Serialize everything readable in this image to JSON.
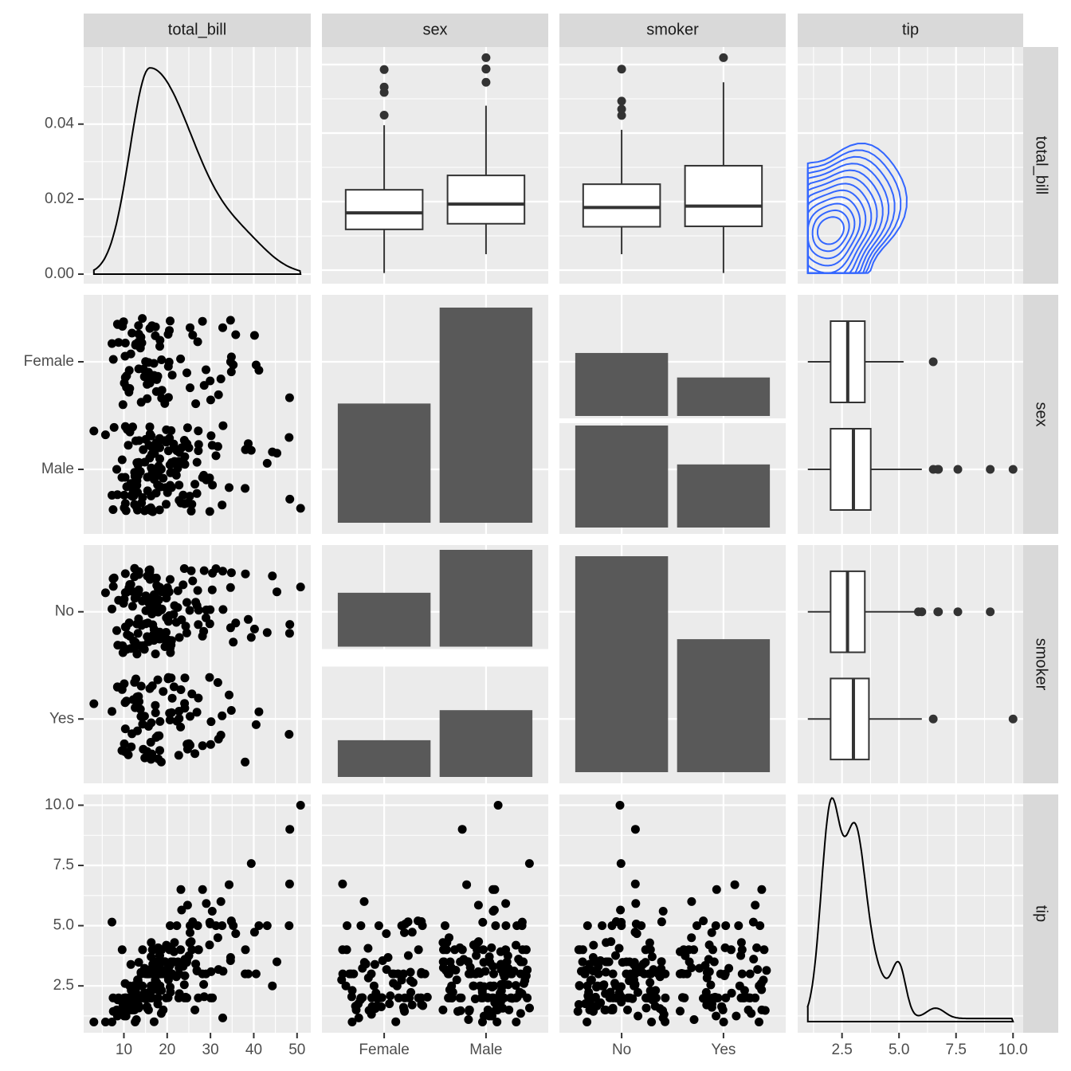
{
  "variables": [
    "total_bill",
    "sex",
    "smoker",
    "tip"
  ],
  "colors": {
    "panel_bg": "#ebebeb",
    "strip_bg": "#d9d9d9",
    "grid": "#ffffff",
    "points": "#000000",
    "bars": "#595959",
    "box_fill": "#ffffff",
    "box_line": "#333333",
    "contour": "#3366ff"
  },
  "chart_data": {
    "type": "scatterplot-matrix",
    "title": "",
    "axes": {
      "total_bill": {
        "range": [
          3.07,
          50.81
        ],
        "ticks": [
          "10",
          "20",
          "30",
          "40",
          "50"
        ],
        "tick_values": [
          10,
          20,
          30,
          40,
          50
        ]
      },
      "tip": {
        "range": [
          1.0,
          10.0
        ],
        "ticks": [
          "2.5",
          "5.0",
          "7.5",
          "10.0"
        ],
        "tick_values": [
          2.5,
          5.0,
          7.5,
          10.0
        ]
      },
      "sex": {
        "ticks": [
          "Female",
          "Male"
        ]
      },
      "smoker": {
        "ticks": [
          "No",
          "Yes"
        ]
      },
      "density_y": {
        "ticks": [
          "0.00",
          "0.02",
          "0.04"
        ],
        "tick_values": [
          0,
          0.02,
          0.04
        ]
      }
    },
    "counts": {
      "sex": {
        "Female": 87,
        "Male": 157
      },
      "smoker": {
        "No": 151,
        "Yes": 93
      },
      "sex_by_smoker": {
        "Female": {
          "No": 54,
          "Yes": 33
        },
        "Male": {
          "No": 97,
          "Yes": 60
        }
      }
    },
    "boxplots": {
      "total_bill_by_sex": {
        "Female": {
          "q1": 12.75,
          "median": 16.4,
          "q3": 21.52,
          "whisker_low": 3.07,
          "whisker_high": 35.83,
          "outliers": [
            38.07,
            43.11,
            44.3,
            48.17
          ]
        },
        "Male": {
          "q1": 14.0,
          "median": 18.35,
          "q3": 24.71,
          "whisker_low": 7.25,
          "whisker_high": 40.17,
          "outliers": [
            45.35,
            48.27,
            48.33,
            50.81
          ]
        }
      },
      "total_bill_by_smoker": {
        "No": {
          "q1": 13.33,
          "median": 17.59,
          "q3": 22.76,
          "whisker_low": 7.25,
          "whisker_high": 34.83,
          "outliers": [
            38.01,
            39.4,
            41.19,
            48.27
          ]
        },
        "Yes": {
          "q1": 13.42,
          "median": 17.92,
          "q3": 26.86,
          "whisker_low": 3.07,
          "whisker_high": 45.35,
          "outliers": [
            50.81
          ]
        }
      },
      "tip_by_sex": {
        "Female": {
          "q1": 2.0,
          "median": 2.75,
          "q3": 3.5,
          "whisker_low": 1.0,
          "whisker_high": 5.2,
          "outliers": [
            6.5
          ]
        },
        "Male": {
          "q1": 2.0,
          "median": 3.0,
          "q3": 3.76,
          "whisker_low": 1.0,
          "whisker_high": 6.0,
          "outliers": [
            6.5,
            6.7,
            6.73,
            7.58,
            9.0,
            10.0
          ]
        }
      },
      "tip_by_smoker": {
        "No": {
          "q1": 2.0,
          "median": 2.74,
          "q3": 3.5,
          "whisker_low": 1.0,
          "whisker_high": 5.75,
          "outliers": [
            5.85,
            6.0,
            6.7,
            6.73,
            7.58,
            9.0
          ]
        },
        "Yes": {
          "q1": 2.0,
          "median": 3.0,
          "q3": 3.68,
          "whisker_low": 1.0,
          "whisker_high": 6.0,
          "outliers": [
            6.5,
            10.0
          ]
        }
      }
    },
    "densities": {
      "total_bill": {
        "mode": 16,
        "peak": 0.055
      },
      "tip": {
        "peaks": [
          [
            2.0,
            1.0
          ],
          [
            3.0,
            0.87
          ],
          [
            5.0,
            0.24
          ]
        ]
      }
    },
    "scatter_total_bill_tip": [
      [
        16.99,
        1.01
      ],
      [
        10.34,
        1.66
      ],
      [
        21.01,
        3.5
      ],
      [
        23.68,
        3.31
      ],
      [
        24.59,
        3.61
      ],
      [
        25.29,
        4.71
      ],
      [
        8.77,
        2.0
      ],
      [
        26.88,
        3.12
      ],
      [
        15.04,
        1.96
      ],
      [
        14.78,
        3.23
      ],
      [
        10.27,
        1.71
      ],
      [
        35.26,
        5.0
      ],
      [
        15.42,
        1.57
      ],
      [
        18.43,
        3.0
      ],
      [
        14.83,
        3.02
      ],
      [
        21.58,
        3.92
      ],
      [
        10.33,
        1.67
      ],
      [
        16.29,
        3.71
      ],
      [
        16.97,
        3.5
      ],
      [
        20.65,
        3.35
      ],
      [
        17.92,
        4.08
      ],
      [
        20.29,
        2.75
      ],
      [
        15.77,
        2.23
      ],
      [
        39.42,
        7.58
      ],
      [
        19.82,
        3.18
      ],
      [
        17.81,
        2.34
      ],
      [
        13.37,
        2.0
      ],
      [
        12.69,
        2.0
      ],
      [
        21.7,
        4.3
      ],
      [
        19.65,
        3.0
      ],
      [
        9.55,
        1.45
      ],
      [
        18.35,
        2.5
      ],
      [
        15.06,
        3.0
      ],
      [
        20.69,
        2.45
      ],
      [
        17.78,
        3.27
      ],
      [
        24.06,
        3.6
      ],
      [
        16.31,
        2.0
      ],
      [
        16.93,
        3.07
      ],
      [
        18.69,
        2.31
      ],
      [
        31.27,
        5.0
      ],
      [
        16.04,
        2.24
      ],
      [
        17.46,
        2.54
      ],
      [
        13.94,
        3.06
      ],
      [
        9.68,
        1.32
      ],
      [
        30.4,
        5.6
      ],
      [
        18.29,
        3.0
      ],
      [
        22.23,
        5.0
      ],
      [
        32.4,
        6.0
      ],
      [
        28.55,
        2.05
      ],
      [
        18.04,
        3.0
      ],
      [
        12.54,
        2.5
      ],
      [
        10.29,
        2.6
      ],
      [
        34.81,
        5.2
      ],
      [
        9.94,
        1.56
      ],
      [
        25.56,
        4.34
      ],
      [
        19.49,
        3.51
      ],
      [
        38.01,
        3.0
      ],
      [
        26.41,
        1.5
      ],
      [
        11.24,
        1.76
      ],
      [
        48.27,
        6.73
      ],
      [
        20.29,
        3.21
      ],
      [
        13.81,
        2.0
      ],
      [
        11.02,
        1.98
      ],
      [
        18.29,
        3.76
      ],
      [
        17.59,
        2.64
      ],
      [
        20.08,
        3.15
      ],
      [
        16.45,
        2.47
      ],
      [
        3.07,
        1.0
      ],
      [
        20.23,
        2.01
      ],
      [
        15.01,
        2.09
      ],
      [
        12.02,
        1.97
      ],
      [
        17.07,
        3.0
      ],
      [
        26.86,
        3.14
      ],
      [
        25.28,
        5.0
      ],
      [
        14.73,
        2.2
      ],
      [
        10.51,
        1.25
      ],
      [
        17.92,
        3.08
      ],
      [
        27.2,
        4.0
      ],
      [
        22.76,
        3.0
      ],
      [
        17.29,
        2.71
      ],
      [
        19.44,
        3.0
      ],
      [
        16.66,
        3.4
      ],
      [
        10.07,
        1.83
      ],
      [
        32.68,
        5.0
      ],
      [
        15.98,
        2.03
      ],
      [
        34.83,
        5.17
      ],
      [
        13.03,
        2.0
      ],
      [
        18.28,
        4.0
      ],
      [
        24.71,
        5.85
      ],
      [
        21.16,
        3.0
      ],
      [
        28.97,
        3.0
      ],
      [
        22.49,
        3.5
      ],
      [
        5.75,
        1.0
      ],
      [
        16.32,
        4.3
      ],
      [
        22.75,
        3.25
      ],
      [
        40.17,
        4.73
      ],
      [
        27.28,
        4.0
      ],
      [
        12.03,
        1.5
      ],
      [
        21.01,
        3.0
      ],
      [
        12.46,
        1.5
      ],
      [
        11.35,
        2.5
      ],
      [
        15.38,
        3.0
      ],
      [
        44.3,
        2.5
      ],
      [
        22.42,
        3.48
      ],
      [
        20.92,
        4.08
      ],
      [
        15.36,
        1.64
      ],
      [
        20.49,
        4.06
      ],
      [
        25.21,
        4.29
      ],
      [
        18.24,
        3.76
      ],
      [
        14.31,
        4.0
      ],
      [
        14.0,
        3.0
      ],
      [
        7.25,
        1.0
      ],
      [
        38.07,
        4.0
      ],
      [
        23.95,
        2.55
      ],
      [
        25.71,
        4.0
      ],
      [
        17.31,
        3.5
      ],
      [
        29.93,
        5.07
      ],
      [
        10.65,
        1.5
      ],
      [
        12.43,
        1.8
      ],
      [
        24.08,
        2.92
      ],
      [
        11.69,
        2.31
      ],
      [
        13.42,
        1.68
      ],
      [
        14.26,
        2.5
      ],
      [
        15.95,
        2.0
      ],
      [
        12.48,
        2.52
      ],
      [
        29.8,
        4.2
      ],
      [
        8.52,
        1.48
      ],
      [
        14.52,
        2.0
      ],
      [
        11.38,
        2.0
      ],
      [
        22.82,
        2.18
      ],
      [
        19.08,
        1.5
      ],
      [
        20.27,
        2.83
      ],
      [
        11.17,
        1.5
      ],
      [
        12.26,
        2.0
      ],
      [
        18.26,
        3.25
      ],
      [
        8.51,
        1.25
      ],
      [
        10.33,
        2.0
      ],
      [
        14.15,
        2.0
      ],
      [
        16.0,
        2.0
      ],
      [
        13.16,
        2.75
      ],
      [
        17.47,
        3.5
      ],
      [
        34.3,
        6.7
      ],
      [
        41.19,
        5.0
      ],
      [
        27.05,
        5.0
      ],
      [
        16.43,
        2.3
      ],
      [
        8.35,
        1.5
      ],
      [
        18.64,
        1.36
      ],
      [
        11.87,
        1.63
      ],
      [
        9.78,
        1.73
      ],
      [
        7.51,
        2.0
      ],
      [
        14.07,
        2.5
      ],
      [
        13.13,
        2.0
      ],
      [
        17.26,
        2.74
      ],
      [
        24.55,
        2.0
      ],
      [
        19.77,
        2.0
      ],
      [
        29.85,
        5.14
      ],
      [
        48.17,
        5.0
      ],
      [
        25.0,
        3.75
      ],
      [
        13.39,
        2.61
      ],
      [
        16.49,
        2.0
      ],
      [
        21.5,
        3.5
      ],
      [
        12.66,
        2.5
      ],
      [
        16.21,
        2.0
      ],
      [
        13.81,
        2.0
      ],
      [
        17.51,
        3.0
      ],
      [
        24.52,
        3.48
      ],
      [
        20.76,
        2.24
      ],
      [
        31.71,
        4.5
      ],
      [
        10.59,
        1.61
      ],
      [
        10.63,
        2.0
      ],
      [
        50.81,
        10.0
      ],
      [
        15.81,
        3.16
      ],
      [
        7.25,
        5.15
      ],
      [
        31.85,
        3.18
      ],
      [
        16.82,
        4.0
      ],
      [
        32.9,
        3.11
      ],
      [
        17.89,
        2.0
      ],
      [
        14.48,
        2.0
      ],
      [
        9.6,
        4.0
      ],
      [
        34.63,
        3.55
      ],
      [
        34.65,
        3.68
      ],
      [
        23.33,
        5.65
      ],
      [
        45.35,
        3.5
      ],
      [
        23.17,
        6.5
      ],
      [
        40.55,
        3.0
      ],
      [
        20.69,
        5.0
      ],
      [
        20.9,
        3.5
      ],
      [
        30.46,
        2.0
      ],
      [
        18.15,
        3.5
      ],
      [
        23.1,
        4.0
      ],
      [
        15.69,
        1.5
      ],
      [
        19.81,
        4.19
      ],
      [
        28.44,
        2.56
      ],
      [
        15.48,
        2.02
      ],
      [
        16.58,
        4.0
      ],
      [
        7.56,
        1.44
      ],
      [
        10.34,
        2.0
      ],
      [
        43.11,
        5.0
      ],
      [
        13.0,
        2.0
      ],
      [
        13.51,
        2.0
      ],
      [
        18.71,
        4.0
      ],
      [
        12.74,
        2.01
      ],
      [
        13.0,
        2.0
      ],
      [
        16.4,
        2.5
      ],
      [
        20.53,
        4.0
      ],
      [
        16.47,
        3.23
      ],
      [
        26.59,
        3.41
      ],
      [
        38.73,
        3.0
      ],
      [
        24.27,
        2.03
      ],
      [
        12.76,
        2.23
      ],
      [
        30.06,
        2.0
      ],
      [
        25.89,
        5.16
      ],
      [
        48.33,
        9.0
      ],
      [
        13.27,
        2.5
      ],
      [
        28.17,
        6.5
      ],
      [
        12.9,
        1.1
      ],
      [
        28.15,
        3.0
      ],
      [
        11.59,
        1.5
      ],
      [
        7.74,
        1.44
      ],
      [
        30.14,
        3.09
      ],
      [
        12.16,
        2.2
      ],
      [
        13.42,
        3.48
      ],
      [
        8.58,
        1.92
      ],
      [
        15.98,
        3.0
      ],
      [
        13.42,
        1.58
      ],
      [
        16.27,
        2.5
      ],
      [
        10.09,
        2.0
      ],
      [
        20.45,
        3.0
      ],
      [
        13.28,
        2.72
      ],
      [
        22.12,
        2.88
      ],
      [
        24.01,
        2.0
      ],
      [
        15.69,
        3.0
      ],
      [
        11.61,
        3.39
      ],
      [
        10.77,
        1.47
      ],
      [
        15.53,
        3.0
      ],
      [
        10.07,
        1.25
      ],
      [
        12.6,
        1.0
      ],
      [
        32.83,
        1.17
      ],
      [
        35.83,
        4.67
      ],
      [
        29.03,
        5.92
      ],
      [
        27.18,
        2.0
      ],
      [
        22.67,
        2.0
      ],
      [
        17.82,
        1.75
      ],
      [
        18.78,
        3.0
      ]
    ]
  }
}
